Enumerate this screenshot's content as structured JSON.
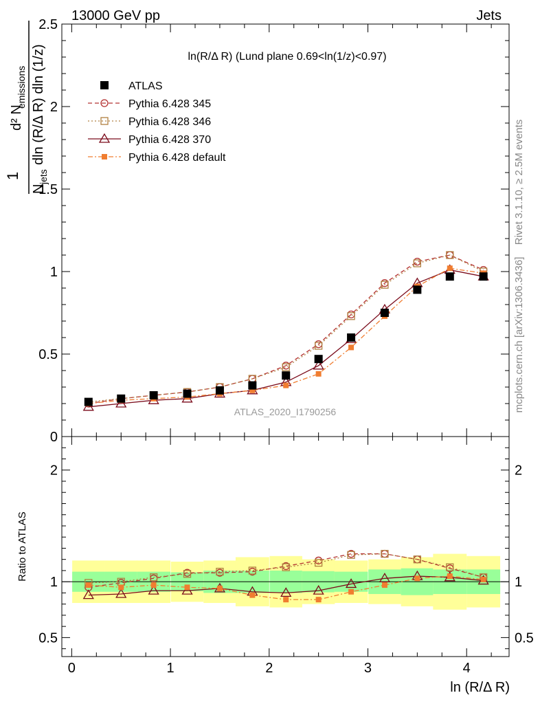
{
  "header": {
    "left": "13000 GeV pp",
    "right": "Jets"
  },
  "side_labels": {
    "rivet": "Rivet 3.1.10, ≥ 2.5M events",
    "mcplots": "mcplots.cern.ch [arXiv:1306.3436]"
  },
  "main_title": "ln(R/Δ R) (Lund plane 0.69<ln(1/z)<0.97)",
  "analysis_label": "ATLAS_2020_I1790256",
  "ylabel_main": {
    "numerator": "d² N",
    "numerator_sub": "emissions",
    "prefix": "1",
    "denominator": "N",
    "denominator_sub": "jets",
    "denominator_rest": "dln (R/Δ R) dln (1/z)"
  },
  "ylabel_ratio": "Ratio to ATLAS",
  "xlabel": "ln (R/Δ R)",
  "chart_data": {
    "type": "line",
    "x": [
      0.17,
      0.5,
      0.83,
      1.17,
      1.5,
      1.83,
      2.17,
      2.5,
      2.83,
      3.17,
      3.5,
      3.83,
      4.17
    ],
    "xlim": [
      -0.1,
      4.43
    ],
    "main": {
      "ylim": [
        0,
        2.5
      ],
      "yticks": [
        0,
        0.5,
        1,
        1.5,
        2,
        2.5
      ],
      "ytick_labels": [
        "0",
        "0.5",
        "1",
        "1.5",
        "2",
        "2.5"
      ]
    },
    "ratio": {
      "ylim": [
        0.33,
        2.3
      ],
      "yticks": [
        0.5,
        1,
        2
      ],
      "ytick_labels": [
        "0.5",
        "1",
        "2"
      ],
      "band_inner": [
        0.09,
        0.09,
        0.09,
        0.085,
        0.1,
        0.1,
        0.1,
        0.095,
        0.09,
        0.11,
        0.12,
        0.11,
        0.11
      ],
      "band_outer": [
        0.19,
        0.19,
        0.19,
        0.18,
        0.19,
        0.22,
        0.23,
        0.2,
        0.19,
        0.2,
        0.22,
        0.25,
        0.23
      ]
    },
    "xticks": [
      0,
      1,
      2,
      3,
      4
    ],
    "xtick_labels": [
      "0",
      "1",
      "2",
      "3",
      "4"
    ],
    "data": {
      "name": "ATLAS",
      "color": "#000000",
      "values": [
        0.21,
        0.23,
        0.25,
        0.26,
        0.28,
        0.31,
        0.37,
        0.47,
        0.6,
        0.75,
        0.89,
        0.97,
        0.97
      ]
    },
    "series": [
      {
        "name": "Pythia 6.428 345",
        "color": "#b33030",
        "marker": "circle",
        "dash": "6,4",
        "values": [
          0.2,
          0.23,
          0.25,
          0.27,
          0.3,
          0.35,
          0.43,
          0.56,
          0.74,
          0.93,
          1.06,
          1.1,
          1.01
        ],
        "ratio": [
          0.95,
          0.99,
          1.03,
          1.08,
          1.08,
          1.09,
          1.14,
          1.19,
          1.25,
          1.25,
          1.2,
          1.12,
          1.04
        ]
      },
      {
        "name": "Pythia 6.428 346",
        "color": "#b08040",
        "marker": "square",
        "dash": "2,3",
        "values": [
          0.21,
          0.23,
          0.25,
          0.27,
          0.3,
          0.35,
          0.42,
          0.55,
          0.73,
          0.92,
          1.05,
          1.1,
          1.0
        ],
        "ratio": [
          0.99,
          1.0,
          1.04,
          1.07,
          1.09,
          1.1,
          1.13,
          1.17,
          1.24,
          1.25,
          1.2,
          1.13,
          1.04
        ]
      },
      {
        "name": "Pythia 6.428 370",
        "color": "#7a0a1a",
        "marker": "triangle",
        "dash": "",
        "values": [
          0.18,
          0.2,
          0.22,
          0.23,
          0.26,
          0.28,
          0.33,
          0.43,
          0.59,
          0.77,
          0.93,
          1.01,
          0.97
        ],
        "ratio": [
          0.88,
          0.89,
          0.92,
          0.92,
          0.94,
          0.91,
          0.9,
          0.92,
          0.98,
          1.03,
          1.05,
          1.04,
          1.01
        ]
      },
      {
        "name": "Pythia 6.428 default",
        "color": "#f07d30",
        "marker": "filled-square",
        "dash": "7,3,2,3",
        "values": [
          0.2,
          0.22,
          0.23,
          0.24,
          0.26,
          0.28,
          0.31,
          0.38,
          0.54,
          0.73,
          0.91,
          1.02,
          0.99
        ],
        "ratio": [
          0.97,
          0.95,
          0.97,
          0.95,
          0.94,
          0.88,
          0.84,
          0.84,
          0.91,
          0.97,
          1.03,
          1.05,
          1.02
        ]
      }
    ]
  }
}
